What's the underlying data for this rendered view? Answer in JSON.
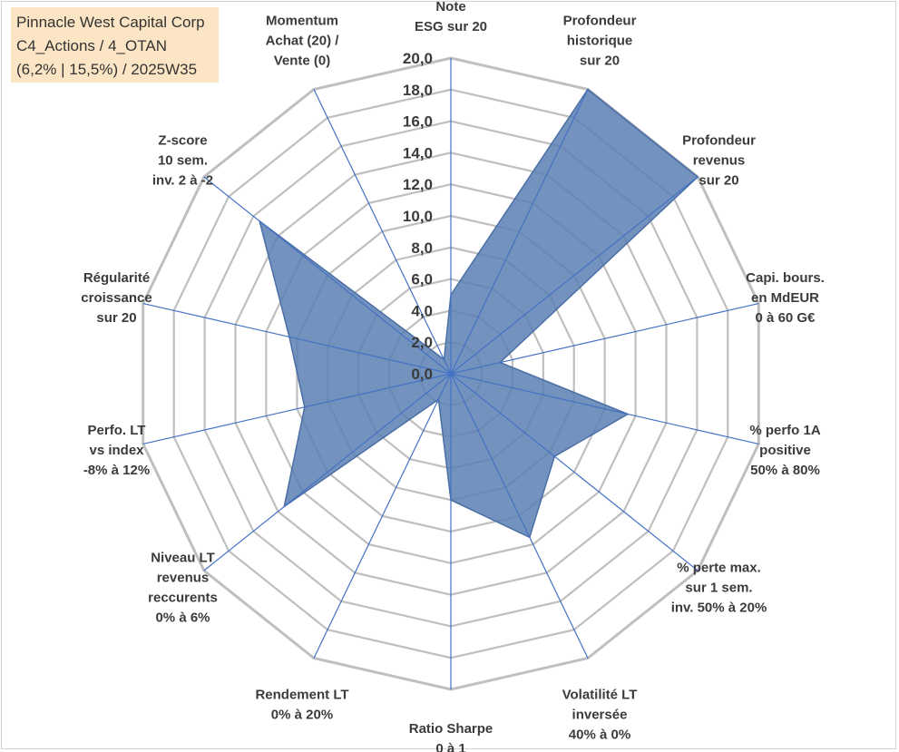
{
  "title_box": {
    "line1": "Pinnacle West Capital Corp",
    "line2": "C4_Actions / 4_OTAN",
    "line3": "(6,2% | 15,5%) / 2025W35"
  },
  "chart_data": {
    "type": "radar",
    "rmin": 0,
    "rmax": 20,
    "tick_labels": [
      "0,0",
      "2,0",
      "4,0",
      "6,0",
      "8,0",
      "10,0",
      "12,0",
      "14,0",
      "16,0",
      "18,0",
      "20,0"
    ],
    "categories": [
      [
        "Note",
        "ESG sur 20"
      ],
      [
        "Profondeur",
        "historique",
        "sur 20"
      ],
      [
        "Profondeur",
        "revenus",
        "sur 20"
      ],
      [
        "Capi. bours.",
        "en MdEUR",
        "0 à 60 G€"
      ],
      [
        "% perfo 1A",
        "positive",
        "50% à 80%"
      ],
      [
        "% perte max.",
        "sur 1 sem.",
        "inv. 50% à 20%"
      ],
      [
        "Volatilité LT",
        "inversée",
        "40% à 0%"
      ],
      [
        "Ratio Sharpe",
        "0 à 1"
      ],
      [
        "Rendement LT",
        "0% à 20%"
      ],
      [
        "Niveau LT",
        "revenus",
        "reccurents",
        "0% à 6%"
      ],
      [
        "Perfo. LT",
        "vs index",
        "-8% à 12%"
      ],
      [
        "Régularité",
        "croissance",
        "sur 20"
      ],
      [
        "Z-score",
        "10 sem.",
        "inv. 2 à -2"
      ],
      [
        "Momentum",
        "Achat (20) /",
        "Vente (0)"
      ]
    ],
    "series": [
      {
        "values": [
          5.0,
          20.0,
          20.0,
          3.2,
          11.5,
          8.4,
          11.5,
          8.0,
          1.8,
          13.5,
          9.5,
          10.5,
          15.5,
          1.0
        ],
        "fill": "#5b7fb3",
        "stroke": "#4a6fa5"
      }
    ],
    "grid_color": "#bfbfbf",
    "axis_color": "#4472c4",
    "legend": "none"
  }
}
